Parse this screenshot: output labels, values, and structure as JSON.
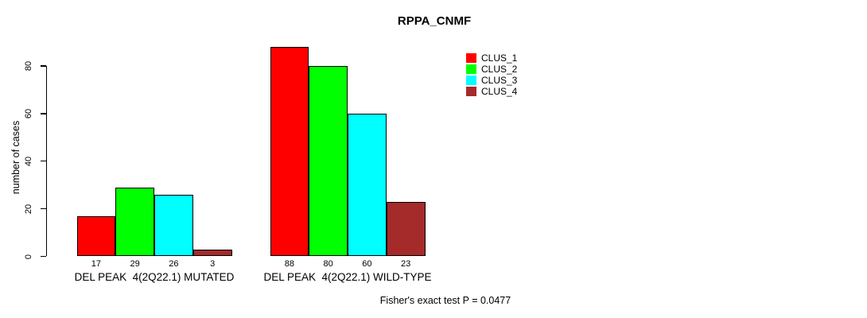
{
  "title": "RPPA_CNMF",
  "footnote": "Fisher's exact test P = 0.0477",
  "chart_data": {
    "type": "bar",
    "title": "RPPA_CNMF",
    "xlabel": "",
    "ylabel": "number of cases",
    "ylim": [
      0,
      88
    ],
    "yticks": [
      0,
      20,
      40,
      60,
      80
    ],
    "grid": false,
    "legend_position": "top-right",
    "categories": [
      "DEL PEAK  4(2Q22.1) MUTATED",
      "DEL PEAK  4(2Q22.1) WILD-TYPE"
    ],
    "series": [
      {
        "name": "CLUS_1",
        "color": "#ff0000",
        "values": [
          17,
          88
        ]
      },
      {
        "name": "CLUS_2",
        "color": "#00ff00",
        "values": [
          29,
          80
        ]
      },
      {
        "name": "CLUS_3",
        "color": "#00ffff",
        "values": [
          26,
          60
        ]
      },
      {
        "name": "CLUS_4",
        "color": "#a52a2a",
        "values": [
          3,
          23
        ]
      }
    ],
    "annotation": "Fisher's exact test P = 0.0477"
  },
  "colors": {
    "axis": "#000000",
    "bar_border": "#000000",
    "background": "#ffffff"
  }
}
